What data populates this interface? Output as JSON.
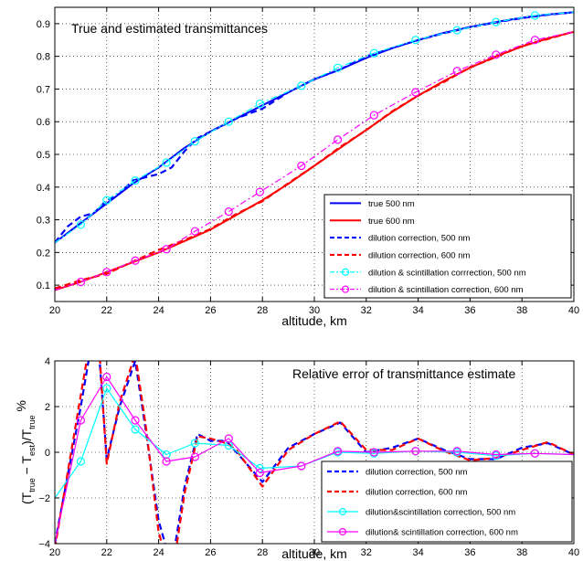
{
  "chart_data": [
    {
      "type": "line",
      "title": "True and estimated transmittances",
      "xlabel": "altitude, km",
      "ylabel": "",
      "xlim": [
        20,
        40
      ],
      "ylim": [
        0.05,
        0.95
      ],
      "xticks": [
        20,
        22,
        24,
        26,
        28,
        30,
        32,
        34,
        36,
        38,
        40
      ],
      "yticks": [
        0.1,
        0.2,
        0.3,
        0.4,
        0.5,
        0.6,
        0.7,
        0.8,
        0.9
      ],
      "grid": true,
      "legend_position": "bottom-right",
      "series": [
        {
          "name": "true 500 nm",
          "color": "#0000ff",
          "style": "solid",
          "x": [
            20,
            21,
            22,
            23,
            24,
            25,
            26,
            27,
            28,
            29,
            30,
            31,
            32,
            33,
            34,
            35,
            36,
            37,
            38,
            39,
            40
          ],
          "y": [
            0.23,
            0.29,
            0.35,
            0.41,
            0.46,
            0.52,
            0.57,
            0.61,
            0.65,
            0.69,
            0.73,
            0.76,
            0.795,
            0.825,
            0.85,
            0.872,
            0.89,
            0.905,
            0.918,
            0.928,
            0.935
          ]
        },
        {
          "name": "true 600 nm",
          "color": "#ff0000",
          "style": "solid",
          "x": [
            20,
            21,
            22,
            23,
            24,
            25,
            26,
            27,
            28,
            29,
            30,
            31,
            32,
            33,
            34,
            35,
            36,
            37,
            38,
            39,
            40
          ],
          "y": [
            0.085,
            0.11,
            0.14,
            0.17,
            0.2,
            0.235,
            0.27,
            0.315,
            0.36,
            0.41,
            0.465,
            0.52,
            0.575,
            0.63,
            0.68,
            0.725,
            0.765,
            0.8,
            0.83,
            0.855,
            0.875
          ]
        },
        {
          "name": "dilution correction, 500 nm",
          "color": "#0000ff",
          "style": "dashed",
          "x": [
            20,
            20.5,
            21,
            21.5,
            22,
            22.5,
            23,
            23.5,
            24,
            24.5,
            25,
            25.5,
            26,
            27,
            28,
            29,
            30,
            31,
            32,
            33,
            34,
            35,
            36,
            37,
            38,
            39,
            40
          ],
          "y": [
            0.23,
            0.28,
            0.31,
            0.32,
            0.36,
            0.38,
            0.42,
            0.43,
            0.44,
            0.46,
            0.51,
            0.55,
            0.57,
            0.61,
            0.64,
            0.69,
            0.73,
            0.76,
            0.8,
            0.825,
            0.85,
            0.871,
            0.889,
            0.904,
            0.917,
            0.927,
            0.935
          ]
        },
        {
          "name": "dilution correction, 600 nm",
          "color": "#ff0000",
          "style": "dashed",
          "x": [
            20,
            21,
            22,
            23,
            24,
            25,
            26,
            27,
            28,
            29,
            30,
            31,
            32,
            33,
            34,
            35,
            36,
            37,
            38,
            39,
            40
          ],
          "y": [
            0.09,
            0.115,
            0.135,
            0.172,
            0.208,
            0.238,
            0.272,
            0.318,
            0.357,
            0.412,
            0.465,
            0.523,
            0.574,
            0.632,
            0.68,
            0.722,
            0.766,
            0.798,
            0.832,
            0.853,
            0.876
          ]
        },
        {
          "name": "dilution & scintillation corrrection, 500 nm",
          "color": "#00ffff",
          "style": "dash-dot",
          "marker": "circle",
          "x": [
            20,
            21,
            22,
            23.1,
            24.3,
            25.4,
            26.7,
            27.9,
            29.5,
            30.9,
            32.3,
            33.9,
            35.5,
            37,
            38.5,
            40
          ],
          "y": [
            0.23,
            0.285,
            0.36,
            0.42,
            0.475,
            0.54,
            0.6,
            0.655,
            0.71,
            0.765,
            0.81,
            0.85,
            0.88,
            0.905,
            0.925,
            0.935
          ]
        },
        {
          "name": "dilution & scintillation correction, 600 nm",
          "color": "#ff00ff",
          "style": "dash-dot",
          "marker": "circle",
          "x": [
            20,
            21,
            22,
            23.1,
            24.3,
            25.4,
            26.7,
            27.9,
            29.5,
            30.9,
            32.3,
            33.9,
            35.5,
            37,
            38.5,
            40
          ],
          "y": [
            0.085,
            0.11,
            0.14,
            0.175,
            0.21,
            0.265,
            0.325,
            0.385,
            0.465,
            0.545,
            0.62,
            0.69,
            0.755,
            0.805,
            0.85,
            0.875
          ]
        }
      ]
    },
    {
      "type": "line",
      "title": "Relative error of transmittance  estimate",
      "xlabel": "altitude, km",
      "ylabel": "(T",
      "ylabel_parts": {
        "open": "(T",
        "sub_true": "true",
        "minus": " − T",
        "sub_est": "est",
        "close": ")/T",
        "sub_true2": "true",
        "unit": " %"
      },
      "xlim": [
        20,
        40
      ],
      "ylim": [
        -4,
        4
      ],
      "xticks": [
        20,
        22,
        24,
        26,
        28,
        30,
        32,
        34,
        36,
        38,
        40
      ],
      "yticks": [
        -4,
        -2,
        0,
        2,
        4
      ],
      "grid": true,
      "legend_position": "bottom-right",
      "series": [
        {
          "name": "dilution correction, 500 nm",
          "color": "#0000ff",
          "style": "dashed",
          "x": [
            20,
            21,
            21.6,
            22,
            22.5,
            23.1,
            23.5,
            24,
            24.5,
            25,
            25.5,
            26,
            26.6,
            27,
            28,
            29,
            30,
            31,
            32,
            33,
            34,
            35,
            36,
            37,
            38,
            39,
            40
          ],
          "y": [
            -4,
            2,
            6,
            -0.3,
            2,
            4,
            1,
            -3,
            -5,
            -1.5,
            0.8,
            0.5,
            0.5,
            0,
            -1.3,
            0.2,
            0.8,
            1.3,
            0,
            0.2,
            0.6,
            0.1,
            -0.3,
            -0.3,
            0.2,
            0.4,
            -0.1
          ]
        },
        {
          "name": "dilution correction, 600 nm",
          "color": "#ff0000",
          "style": "dashed",
          "x": [
            20,
            21,
            21.6,
            22,
            22.5,
            23.1,
            23.5,
            24,
            24.5,
            25,
            25.5,
            26,
            26.6,
            27,
            28,
            29,
            30,
            31,
            32,
            33,
            34,
            35,
            36,
            37,
            38,
            39,
            40
          ],
          "y": [
            -4.2,
            2.5,
            6.5,
            -0.5,
            2.2,
            4.3,
            1.2,
            -3.5,
            -5.5,
            -1.8,
            0.7,
            0.6,
            0.4,
            0.1,
            -1.5,
            0.1,
            0.8,
            1.35,
            0.1,
            0.1,
            0.6,
            0.05,
            -0.35,
            -0.25,
            0.1,
            0.45,
            -0.1
          ]
        },
        {
          "name": "dilution&scintillation correction, 500 nm",
          "color": "#00ffff",
          "style": "solid",
          "marker": "circle",
          "x": [
            20,
            21,
            22,
            23.1,
            24.3,
            25.4,
            26.7,
            27.9,
            29.5,
            30.9,
            32.3,
            33.9,
            35.5,
            37,
            38.5,
            40
          ],
          "y": [
            -2,
            -0.4,
            2.8,
            1,
            -0.1,
            0.4,
            0.3,
            -0.7,
            -0.6,
            0,
            -0.05,
            0.05,
            0,
            -0.15,
            -0.05,
            -0.1
          ]
        },
        {
          "name": "dilution& scintillation correction, 600 nm",
          "color": "#ff00ff",
          "style": "solid",
          "marker": "circle",
          "x": [
            20,
            21,
            22,
            23.1,
            24.3,
            25.4,
            26.7,
            27.9,
            29.5,
            30.9,
            32.3,
            33.9,
            35.5,
            37,
            38.5,
            40
          ],
          "y": [
            -4,
            1.4,
            3.3,
            1.4,
            -0.4,
            -0.2,
            0.6,
            -0.9,
            -0.6,
            0.05,
            0,
            0.05,
            0.05,
            -0.1,
            -0.05,
            -0.1
          ]
        }
      ]
    }
  ]
}
